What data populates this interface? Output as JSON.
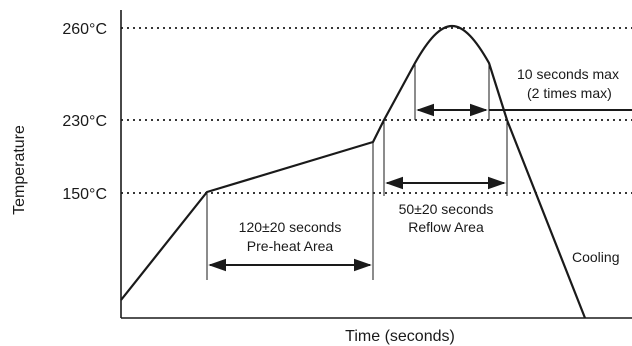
{
  "diagram": {
    "y_axis_label": "Temperature",
    "x_axis_label": "Time (seconds)",
    "temperature_levels": [
      "260°C",
      "230°C",
      "150°C"
    ],
    "preheat": {
      "duration": "120±20 seconds",
      "name": "Pre-heat Area"
    },
    "reflow": {
      "duration": "50±20 seconds",
      "name": "Reflow Area"
    },
    "peak": {
      "duration": "10 seconds max",
      "limit": "(2 times max)"
    },
    "cooling": "Cooling",
    "colors": {
      "line": "#1a1a1a",
      "background": "#ffffff"
    }
  }
}
